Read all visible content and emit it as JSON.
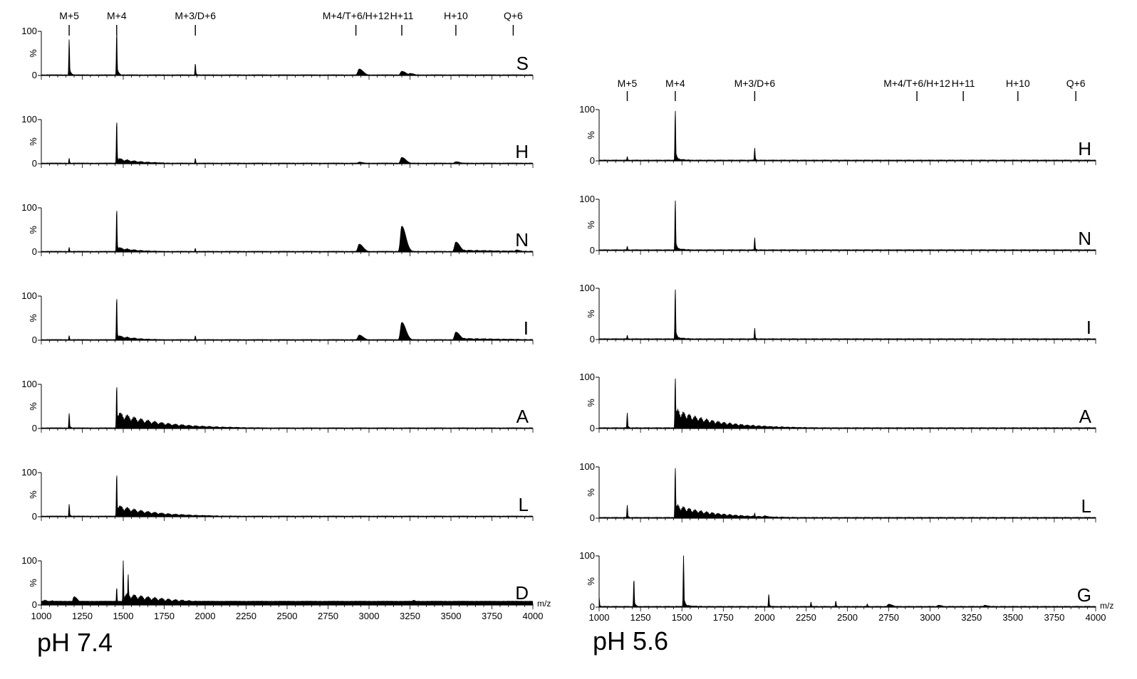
{
  "chart_data": [
    {
      "type": "line",
      "ph_label": "pH 7.4",
      "x_ticks": [
        "1000",
        "1250",
        "1500",
        "1750",
        "2000",
        "2250",
        "2500",
        "2750",
        "3000",
        "3250",
        "3500",
        "3750",
        "4000"
      ],
      "xlim": [
        1000,
        4000
      ],
      "x_unit": "m/z",
      "ylim": [
        0,
        100
      ],
      "y_ticks": [
        "0",
        "100"
      ],
      "ylabel": "%",
      "peak_markers": [
        {
          "label": "M+5",
          "x": 1170
        },
        {
          "label": "M+4",
          "x": 1460
        },
        {
          "label": "M+3/D+6",
          "x": 1940
        },
        {
          "label": "M+4/T+6/H+12",
          "x": 2920
        },
        {
          "label": "H+11",
          "x": 3200
        },
        {
          "label": "H+10",
          "x": 3530
        },
        {
          "label": "Q+6",
          "x": 3880
        }
      ],
      "panels": [
        {
          "label": "S",
          "baseline": 1,
          "peaks": [
            [
              1170,
              82,
              "sharp"
            ],
            [
              1460,
              100,
              "sharp"
            ],
            [
              1940,
              27,
              "sharp"
            ],
            [
              2940,
              14,
              "broad"
            ],
            [
              3200,
              9,
              "broad"
            ],
            [
              3250,
              4,
              "broad"
            ]
          ],
          "tails": []
        },
        {
          "label": "H",
          "baseline": 1,
          "peaks": [
            [
              1170,
              12,
              "sharp"
            ],
            [
              1460,
              100,
              "sharp"
            ],
            [
              1940,
              12,
              "sharp"
            ],
            [
              2940,
              3,
              "broad"
            ],
            [
              3200,
              14,
              "broad"
            ],
            [
              3530,
              4,
              "broad"
            ]
          ],
          "tails": [
            [
              1460,
              14,
              140
            ]
          ]
        },
        {
          "label": "N",
          "baseline": 1,
          "peaks": [
            [
              1170,
              10,
              "sharp"
            ],
            [
              1460,
              100,
              "sharp"
            ],
            [
              1940,
              8,
              "sharp"
            ],
            [
              2940,
              17,
              "broad"
            ],
            [
              3200,
              58,
              "broad"
            ],
            [
              3530,
              22,
              "broad"
            ],
            [
              3900,
              4,
              "broad"
            ]
          ],
          "tails": [
            [
              1460,
              12,
              120
            ],
            [
              3530,
              5,
              400
            ]
          ]
        },
        {
          "label": "I",
          "baseline": 1,
          "peaks": [
            [
              1170,
              10,
              "sharp"
            ],
            [
              1460,
              100,
              "sharp"
            ],
            [
              1940,
              10,
              "sharp"
            ],
            [
              2940,
              11,
              "broad"
            ],
            [
              3200,
              40,
              "broad"
            ],
            [
              3530,
              18,
              "broad"
            ]
          ],
          "tails": [
            [
              1460,
              12,
              120
            ],
            [
              3530,
              5,
              400
            ]
          ]
        },
        {
          "label": "A",
          "baseline": 1,
          "peaks": [
            [
              1170,
              34,
              "sharp"
            ],
            [
              1460,
              100,
              "sharp"
            ],
            [
              2000,
              3,
              "broad"
            ]
          ],
          "tails": [
            [
              1460,
              40,
              260
            ]
          ]
        },
        {
          "label": "L",
          "baseline": 1,
          "peaks": [
            [
              1170,
              28,
              "sharp"
            ],
            [
              1460,
              100,
              "sharp"
            ],
            [
              2000,
              2,
              "broad"
            ]
          ],
          "tails": [
            [
              1460,
              28,
              230
            ]
          ]
        },
        {
          "label": "D",
          "baseline": 8,
          "peaks": [
            [
              1200,
              18,
              "broad"
            ],
            [
              1460,
              40,
              "sharp"
            ],
            [
              1500,
              100,
              "sharp"
            ],
            [
              1530,
              70,
              "sharp"
            ],
            [
              3270,
              10,
              "broad"
            ]
          ],
          "tails": [
            [
              1500,
              28,
              400
            ],
            [
              1000,
              12,
              300
            ]
          ]
        }
      ]
    },
    {
      "type": "line",
      "ph_label": "pH 5.6",
      "x_ticks": [
        "1000",
        "1250",
        "1500",
        "1750",
        "2000",
        "2250",
        "2500",
        "2750",
        "3000",
        "3250",
        "3500",
        "3750",
        "4000"
      ],
      "xlim": [
        1000,
        4000
      ],
      "x_unit": "m/z",
      "ylim": [
        0,
        100
      ],
      "y_ticks": [
        "0",
        "100"
      ],
      "ylabel": "%",
      "peak_markers": [
        {
          "label": "M+5",
          "x": 1170
        },
        {
          "label": "M+4",
          "x": 1460
        },
        {
          "label": "M+3/D+6",
          "x": 1940
        },
        {
          "label": "M+4/T+6/H+12",
          "x": 2920
        },
        {
          "label": "H+11",
          "x": 3200
        },
        {
          "label": "H+10",
          "x": 3530
        },
        {
          "label": "Q+6",
          "x": 3880
        }
      ],
      "panels": [
        {
          "label": "H",
          "baseline": 1,
          "peaks": [
            [
              1170,
              8,
              "sharp"
            ],
            [
              1460,
              100,
              "sharp"
            ],
            [
              1940,
              25,
              "sharp"
            ]
          ],
          "tails": [
            [
              1460,
              6,
              60
            ]
          ]
        },
        {
          "label": "N",
          "baseline": 1,
          "peaks": [
            [
              1170,
              8,
              "sharp"
            ],
            [
              1460,
              100,
              "sharp"
            ],
            [
              1940,
              25,
              "sharp"
            ]
          ],
          "tails": [
            [
              1460,
              6,
              60
            ]
          ]
        },
        {
          "label": "I",
          "baseline": 1,
          "peaks": [
            [
              1170,
              8,
              "sharp"
            ],
            [
              1460,
              100,
              "sharp"
            ],
            [
              1940,
              22,
              "sharp"
            ]
          ],
          "tails": [
            [
              1460,
              6,
              60
            ]
          ]
        },
        {
          "label": "A",
          "baseline": 1,
          "peaks": [
            [
              1170,
              30,
              "sharp"
            ],
            [
              1460,
              100,
              "sharp"
            ],
            [
              2000,
              4,
              "broad"
            ]
          ],
          "tails": [
            [
              1460,
              40,
              250
            ]
          ]
        },
        {
          "label": "L",
          "baseline": 1,
          "peaks": [
            [
              1170,
              25,
              "sharp"
            ],
            [
              1460,
              100,
              "sharp"
            ],
            [
              1940,
              10,
              "sharp"
            ],
            [
              2000,
              4,
              "broad"
            ]
          ],
          "tails": [
            [
              1460,
              28,
              240
            ]
          ]
        },
        {
          "label": "G",
          "baseline": 1,
          "peaks": [
            [
              1000,
              20,
              "sharp"
            ],
            [
              1210,
              55,
              "sharp"
            ],
            [
              1510,
              100,
              "sharp"
            ],
            [
              2025,
              25,
              "sharp"
            ],
            [
              2280,
              10,
              "sharp"
            ],
            [
              2430,
              12,
              "sharp"
            ],
            [
              2620,
              6,
              "sharp"
            ],
            [
              2750,
              5,
              "broad"
            ],
            [
              3050,
              3,
              "broad"
            ],
            [
              3330,
              3,
              "broad"
            ]
          ],
          "tails": [
            [
              1510,
              4,
              100
            ]
          ]
        }
      ]
    }
  ]
}
